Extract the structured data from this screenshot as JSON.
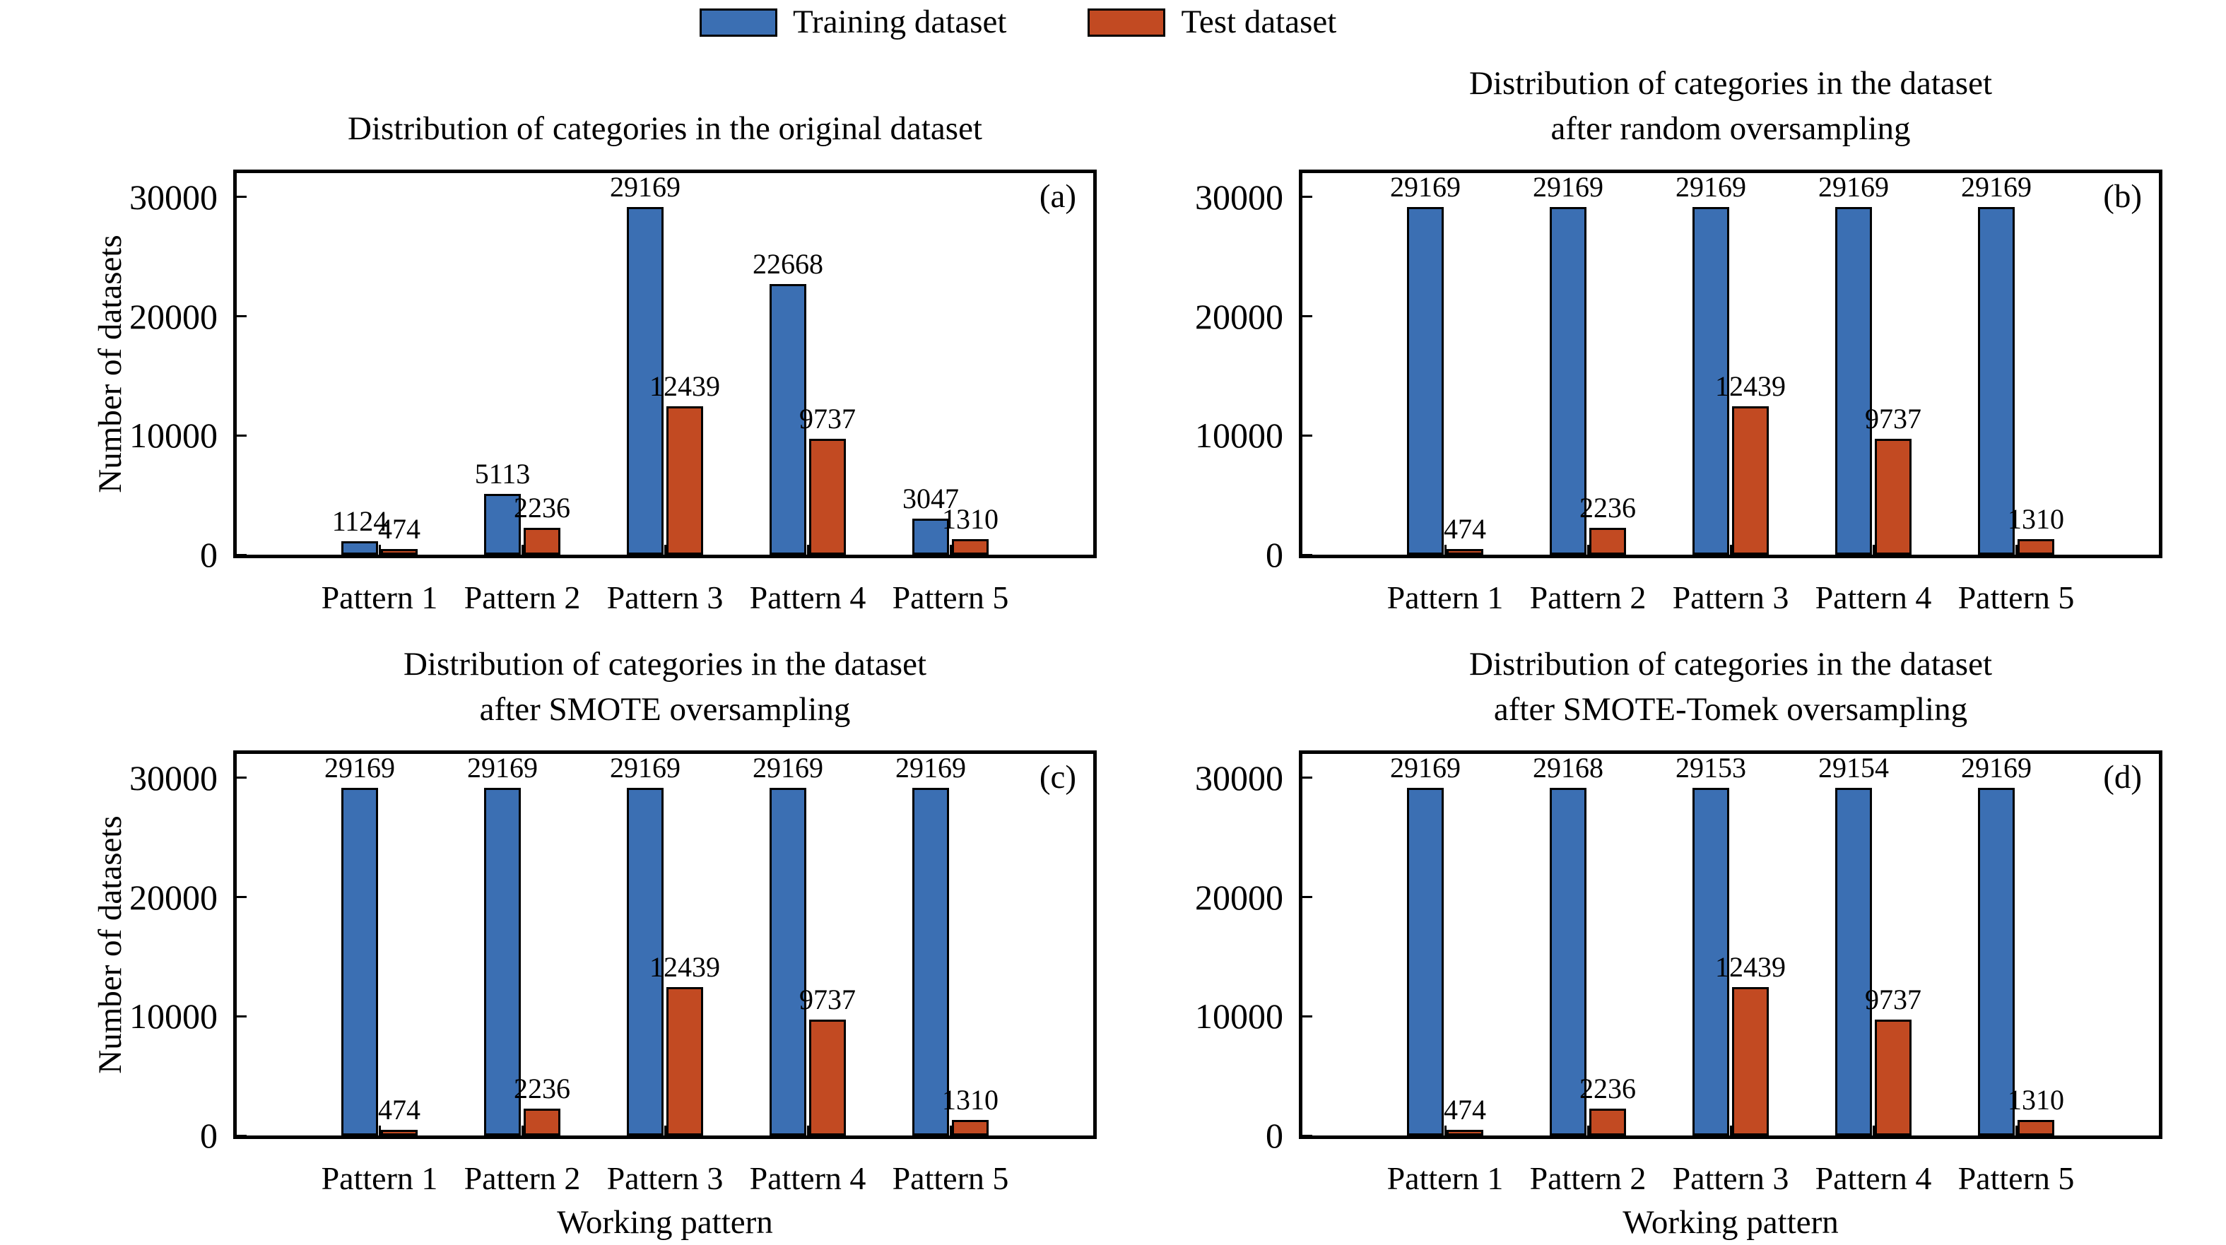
{
  "legend": {
    "items": [
      {
        "label": "Training dataset",
        "color": "#3b6fb3"
      },
      {
        "label": "Test dataset",
        "color": "#c24a22"
      }
    ]
  },
  "axes": {
    "ylabel": "Number of datasets",
    "xlabel": "Working pattern",
    "y_ticks": [
      0,
      10000,
      20000,
      30000
    ],
    "y_max": 32000
  },
  "chart_data": [
    {
      "type": "bar",
      "corner_label": "(a)",
      "title": "Distribution of categories in the original dataset",
      "title_lines": [
        "Distribution of categories in the original dataset"
      ],
      "categories": [
        "Pattern 1",
        "Pattern 2",
        "Pattern 3",
        "Pattern 4",
        "Pattern 5"
      ],
      "ylabel": "Number of datasets",
      "ylim": [
        0,
        32000
      ],
      "series": [
        {
          "name": "Training dataset",
          "color": "#3b6fb3",
          "values": [
            1124,
            5113,
            29169,
            22668,
            3047
          ]
        },
        {
          "name": "Test dataset",
          "color": "#c24a22",
          "values": [
            474,
            2236,
            12439,
            9737,
            1310
          ]
        }
      ]
    },
    {
      "type": "bar",
      "corner_label": "(b)",
      "title": "Distribution of categories in the dataset after random oversampling",
      "title_lines": [
        "Distribution of categories in the dataset",
        "after random oversampling"
      ],
      "categories": [
        "Pattern 1",
        "Pattern 2",
        "Pattern 3",
        "Pattern 4",
        "Pattern 5"
      ],
      "ylim": [
        0,
        32000
      ],
      "series": [
        {
          "name": "Training dataset",
          "color": "#3b6fb3",
          "values": [
            29169,
            29169,
            29169,
            29169,
            29169
          ]
        },
        {
          "name": "Test dataset",
          "color": "#c24a22",
          "values": [
            474,
            2236,
            12439,
            9737,
            1310
          ]
        }
      ]
    },
    {
      "type": "bar",
      "corner_label": "(c)",
      "title": "Distribution of categories in the dataset after SMOTE oversampling",
      "title_lines": [
        "Distribution of categories in the dataset",
        "after SMOTE oversampling"
      ],
      "categories": [
        "Pattern 1",
        "Pattern 2",
        "Pattern 3",
        "Pattern 4",
        "Pattern 5"
      ],
      "ylabel": "Number of datasets",
      "xlabel": "Working pattern",
      "ylim": [
        0,
        32000
      ],
      "series": [
        {
          "name": "Training dataset",
          "color": "#3b6fb3",
          "values": [
            29169,
            29169,
            29169,
            29169,
            29169
          ]
        },
        {
          "name": "Test dataset",
          "color": "#c24a22",
          "values": [
            474,
            2236,
            12439,
            9737,
            1310
          ]
        }
      ]
    },
    {
      "type": "bar",
      "corner_label": "(d)",
      "title": "Distribution of categories in the dataset after SMOTE-Tomek oversampling",
      "title_lines": [
        "Distribution of categories in the dataset",
        "after SMOTE-Tomek oversampling"
      ],
      "categories": [
        "Pattern 1",
        "Pattern 2",
        "Pattern 3",
        "Pattern 4",
        "Pattern 5"
      ],
      "xlabel": "Working pattern",
      "ylim": [
        0,
        32000
      ],
      "series": [
        {
          "name": "Training dataset",
          "color": "#3b6fb3",
          "values": [
            29169,
            29168,
            29153,
            29154,
            29169
          ]
        },
        {
          "name": "Test dataset",
          "color": "#c24a22",
          "values": [
            474,
            2236,
            12439,
            9737,
            1310
          ]
        }
      ]
    }
  ]
}
